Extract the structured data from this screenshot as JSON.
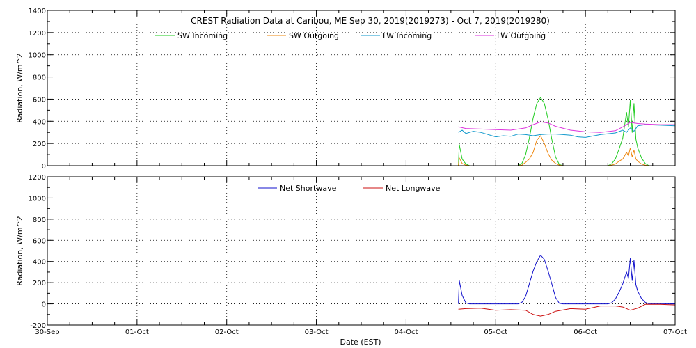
{
  "chart_data": [
    {
      "type": "line",
      "title": "CREST Radiation Data at Caribou, ME   Sep 30, 2019(2019273) - Oct  7, 2019(2019280)",
      "ylabel": "Radiation, W/m^2",
      "xlabel": "",
      "xlim": [
        "2019-09-30",
        "2019-10-07"
      ],
      "ylim": [
        0,
        1400
      ],
      "yticks": [
        0,
        200,
        400,
        600,
        800,
        1000,
        1200,
        1400
      ],
      "xticks": [
        "2019-09-30",
        "2019-10-01",
        "2019-10-02",
        "2019-10-03",
        "2019-10-04",
        "2019-10-05",
        "2019-10-06",
        "2019-10-07"
      ],
      "grid": true,
      "legend": "top",
      "series": [
        {
          "name": "SW Incoming",
          "color": "#22cc22",
          "x": [
            "2019-10-04 14:00",
            "2019-10-04 14:15",
            "2019-10-04 15:00",
            "2019-10-04 16:00",
            "2019-10-04 17:00",
            "2019-10-05 06:00",
            "2019-10-05 07:00",
            "2019-10-05 08:00",
            "2019-10-05 09:00",
            "2019-10-05 10:00",
            "2019-10-05 11:00",
            "2019-10-05 12:00",
            "2019-10-05 13:00",
            "2019-10-05 14:00",
            "2019-10-05 15:00",
            "2019-10-05 16:00",
            "2019-10-05 17:00",
            "2019-10-05 18:00",
            "2019-10-06 06:00",
            "2019-10-06 07:00",
            "2019-10-06 08:00",
            "2019-10-06 09:00",
            "2019-10-06 10:00",
            "2019-10-06 11:00",
            "2019-10-06 11:30",
            "2019-10-06 12:00",
            "2019-10-06 12:30",
            "2019-10-06 13:00",
            "2019-10-06 13:30",
            "2019-10-06 14:00",
            "2019-10-06 15:00",
            "2019-10-06 16:00",
            "2019-10-06 17:00"
          ],
          "y": [
            0,
            190,
            60,
            15,
            0,
            0,
            20,
            100,
            250,
            430,
            560,
            615,
            560,
            420,
            240,
            80,
            10,
            0,
            0,
            15,
            60,
            150,
            250,
            480,
            350,
            590,
            300,
            560,
            240,
            160,
            70,
            20,
            0
          ]
        },
        {
          "name": "SW Outgoing",
          "color": "#ee8811",
          "x": [
            "2019-10-04 14:00",
            "2019-10-04 14:15",
            "2019-10-04 15:00",
            "2019-10-04 16:00",
            "2019-10-04 17:00",
            "2019-10-05 06:00",
            "2019-10-05 07:00",
            "2019-10-05 08:00",
            "2019-10-05 09:00",
            "2019-10-05 10:00",
            "2019-10-05 11:00",
            "2019-10-05 12:00",
            "2019-10-05 13:00",
            "2019-10-05 14:00",
            "2019-10-05 15:00",
            "2019-10-05 16:00",
            "2019-10-05 17:00",
            "2019-10-05 18:00",
            "2019-10-06 06:00",
            "2019-10-06 07:00",
            "2019-10-06 08:00",
            "2019-10-06 09:00",
            "2019-10-06 10:00",
            "2019-10-06 11:00",
            "2019-10-06 11:30",
            "2019-10-06 12:00",
            "2019-10-06 12:30",
            "2019-10-06 13:00",
            "2019-10-06 13:30",
            "2019-10-06 14:00",
            "2019-10-06 15:00",
            "2019-10-06 16:00",
            "2019-10-06 17:00"
          ],
          "y": [
            0,
            70,
            20,
            5,
            0,
            0,
            5,
            30,
            60,
            120,
            230,
            270,
            200,
            110,
            50,
            20,
            5,
            0,
            0,
            5,
            15,
            40,
            60,
            120,
            90,
            160,
            80,
            140,
            60,
            40,
            15,
            5,
            0
          ]
        },
        {
          "name": "LW Incoming",
          "color": "#1199cc",
          "x": [
            "2019-10-04 14:00",
            "2019-10-04 15:00",
            "2019-10-04 16:00",
            "2019-10-04 18:00",
            "2019-10-04 20:00",
            "2019-10-05 00:00",
            "2019-10-05 02:00",
            "2019-10-05 04:00",
            "2019-10-05 06:00",
            "2019-10-05 08:00",
            "2019-10-05 10:00",
            "2019-10-05 12:00",
            "2019-10-05 14:00",
            "2019-10-05 16:00",
            "2019-10-05 18:00",
            "2019-10-05 20:00",
            "2019-10-05 22:00",
            "2019-10-06 00:00",
            "2019-10-06 04:00",
            "2019-10-06 08:00",
            "2019-10-06 10:00",
            "2019-10-06 11:00",
            "2019-10-06 12:00",
            "2019-10-06 13:00",
            "2019-10-06 14:00",
            "2019-10-06 16:00",
            "2019-10-06 20:00",
            "2019-10-07 00:00"
          ],
          "y": [
            300,
            320,
            290,
            310,
            300,
            260,
            270,
            265,
            285,
            280,
            270,
            280,
            285,
            285,
            280,
            275,
            260,
            255,
            280,
            295,
            320,
            300,
            340,
            310,
            360,
            370,
            365,
            360
          ]
        },
        {
          "name": "LW Outgoing",
          "color": "#dd33dd",
          "x": [
            "2019-10-04 14:00",
            "2019-10-04 16:00",
            "2019-10-04 20:00",
            "2019-10-05 00:00",
            "2019-10-05 04:00",
            "2019-10-05 08:00",
            "2019-10-05 10:00",
            "2019-10-05 12:00",
            "2019-10-05 14:00",
            "2019-10-05 16:00",
            "2019-10-05 20:00",
            "2019-10-06 00:00",
            "2019-10-06 04:00",
            "2019-10-06 08:00",
            "2019-10-06 10:00",
            "2019-10-06 12:00",
            "2019-10-06 14:00",
            "2019-10-06 16:00",
            "2019-10-06 20:00",
            "2019-10-07 00:00"
          ],
          "y": [
            350,
            335,
            330,
            325,
            320,
            340,
            370,
            395,
            385,
            355,
            320,
            305,
            300,
            315,
            350,
            390,
            380,
            375,
            370,
            370
          ]
        }
      ]
    },
    {
      "type": "line",
      "title": "",
      "ylabel": "Radiation, W/m^2",
      "xlabel": "Date (EST)",
      "xlim": [
        "2019-09-30",
        "2019-10-07"
      ],
      "ylim": [
        -200,
        1200
      ],
      "yticks": [
        -200,
        0,
        200,
        400,
        600,
        800,
        1000,
        1200
      ],
      "xticks": [
        "2019-09-30",
        "2019-10-01",
        "2019-10-02",
        "2019-10-03",
        "2019-10-04",
        "2019-10-05",
        "2019-10-06",
        "2019-10-07"
      ],
      "xticklabels": [
        "30-Sep",
        "01-Oct",
        "02-Oct",
        "03-Oct",
        "04-Oct",
        "05-Oct",
        "06-Oct",
        "07-Oct"
      ],
      "grid": true,
      "legend": "top",
      "series": [
        {
          "name": "Net Shortwave",
          "color": "#1111cc",
          "x": [
            "2019-10-04 14:00",
            "2019-10-04 14:15",
            "2019-10-04 15:00",
            "2019-10-04 16:00",
            "2019-10-04 17:00",
            "2019-10-05 06:00",
            "2019-10-05 07:00",
            "2019-10-05 08:00",
            "2019-10-05 09:00",
            "2019-10-05 10:00",
            "2019-10-05 11:00",
            "2019-10-05 12:00",
            "2019-10-05 13:00",
            "2019-10-05 14:00",
            "2019-10-05 15:00",
            "2019-10-05 16:00",
            "2019-10-05 17:00",
            "2019-10-05 18:00",
            "2019-10-06 06:00",
            "2019-10-06 07:00",
            "2019-10-06 08:00",
            "2019-10-06 09:00",
            "2019-10-06 10:00",
            "2019-10-06 11:00",
            "2019-10-06 11:30",
            "2019-10-06 12:00",
            "2019-10-06 12:30",
            "2019-10-06 13:00",
            "2019-10-06 13:30",
            "2019-10-06 14:00",
            "2019-10-06 15:00",
            "2019-10-06 16:00",
            "2019-10-06 17:00",
            "2019-10-07 00:00"
          ],
          "y": [
            0,
            220,
            80,
            10,
            0,
            0,
            15,
            70,
            190,
            310,
            400,
            460,
            420,
            310,
            190,
            60,
            5,
            0,
            0,
            10,
            45,
            110,
            190,
            300,
            240,
            430,
            220,
            410,
            180,
            120,
            50,
            15,
            0,
            0
          ]
        },
        {
          "name": "Net Longwave",
          "color": "#cc1111",
          "x": [
            "2019-10-04 14:00",
            "2019-10-04 16:00",
            "2019-10-04 20:00",
            "2019-10-05 00:00",
            "2019-10-05 04:00",
            "2019-10-05 08:00",
            "2019-10-05 10:00",
            "2019-10-05 12:00",
            "2019-10-05 14:00",
            "2019-10-05 16:00",
            "2019-10-05 20:00",
            "2019-10-06 00:00",
            "2019-10-06 04:00",
            "2019-10-06 08:00",
            "2019-10-06 10:00",
            "2019-10-06 12:00",
            "2019-10-06 14:00",
            "2019-10-06 16:00",
            "2019-10-06 20:00",
            "2019-10-07 00:00"
          ],
          "y": [
            -50,
            -45,
            -40,
            -60,
            -55,
            -60,
            -100,
            -115,
            -100,
            -70,
            -45,
            -50,
            -20,
            -20,
            -30,
            -60,
            -40,
            -5,
            -5,
            -10
          ]
        }
      ]
    }
  ]
}
